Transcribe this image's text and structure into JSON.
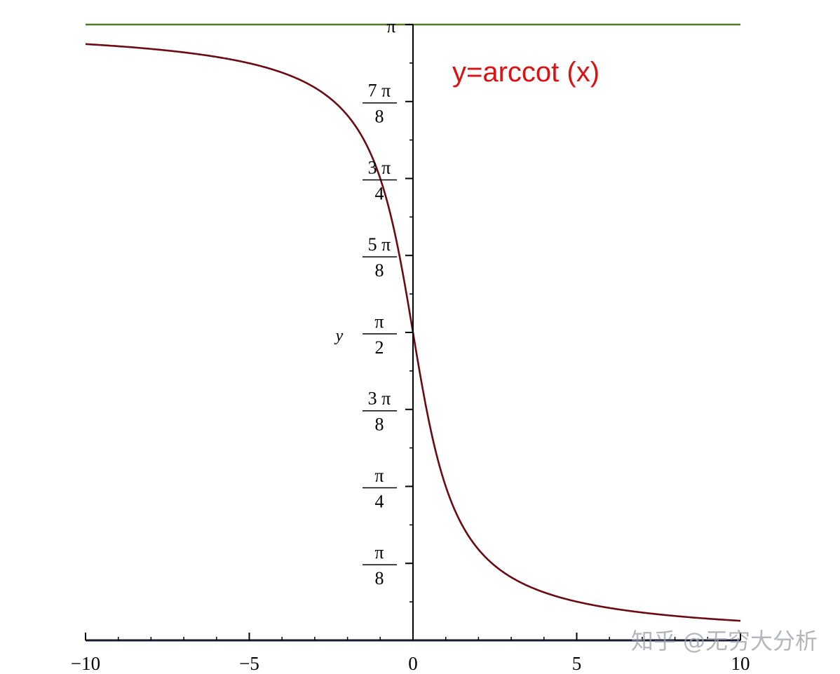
{
  "chart_data": {
    "type": "line",
    "title": "",
    "xlabel": "",
    "ylabel": "y",
    "xlim": [
      -10,
      10
    ],
    "ylim": [
      0,
      3.14159
    ],
    "grid": false,
    "x_ticks": [
      -10,
      -5,
      0,
      5,
      10
    ],
    "x_tick_labels": [
      "−10",
      "−5",
      "0",
      "5",
      "10"
    ],
    "y_ticks": [
      {
        "value": 0.3927,
        "num": "π",
        "den": "8"
      },
      {
        "value": 0.7854,
        "num": "π",
        "den": "4"
      },
      {
        "value": 1.1781,
        "num": "3 π",
        "den": "8"
      },
      {
        "value": 1.5708,
        "num": "π",
        "den": "2"
      },
      {
        "value": 1.9635,
        "num": "5 π",
        "den": "8"
      },
      {
        "value": 2.3562,
        "num": "3 π",
        "den": "4"
      },
      {
        "value": 2.7489,
        "num": "7 π",
        "den": "8"
      },
      {
        "value": 3.1416,
        "label": "π"
      }
    ],
    "series": [
      {
        "function": "arccot",
        "x": [
          -10,
          -8,
          -6,
          -5,
          -4,
          -3,
          -2,
          -1.5,
          -1,
          -0.5,
          0,
          0.5,
          1,
          1.5,
          2,
          3,
          4,
          5,
          6,
          8,
          10
        ],
        "y": [
          3.0419,
          3.0172,
          2.9764,
          2.9442,
          2.8966,
          2.8198,
          2.6779,
          2.5536,
          2.3562,
          2.0344,
          1.5708,
          1.1071,
          0.7854,
          0.588,
          0.4636,
          0.3218,
          0.245,
          0.1974,
          0.1651,
          0.1244,
          0.0997
        ],
        "color": "#6b0a12"
      },
      {
        "function": "constant",
        "x": [
          -10,
          10
        ],
        "y": [
          3.1416,
          3.1416
        ],
        "color": "#4f7a1f"
      }
    ],
    "annotations": [
      {
        "text": "y=arccot (x)",
        "color": "#dd1111"
      }
    ]
  },
  "watermark": "知乎 @无穷大分析",
  "colors": {
    "curve": "#6b0a12",
    "asymptote": "#4f7a1f",
    "axis": "#000000",
    "x_axis": "#151830",
    "annotation": "#dd1111"
  }
}
